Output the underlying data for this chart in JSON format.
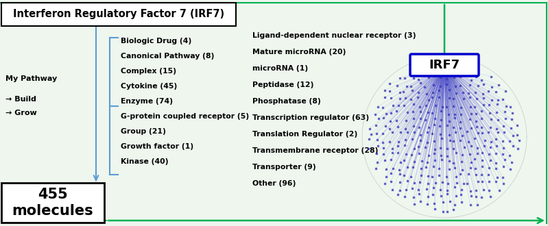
{
  "title": "Interferon Regulatory Factor 7 (IRF7)",
  "left_labels": [
    "My Pathway",
    "→ Build",
    "→ Grow"
  ],
  "col1_items": [
    "Biologic Drug (4)",
    "Canonical Pathway (8)",
    "Complex (15)",
    "Cytokine (45)",
    "Enzyme (74)",
    "G-protein coupled receptor (5)",
    "Group (21)",
    "Growth factor (1)",
    "Kinase (40)"
  ],
  "col2_items": [
    "Ligand-dependent nuclear receptor (3)",
    "Mature microRNA (20)",
    "microRNA (1)",
    "Peptidase (12)",
    "Phosphatase (8)",
    "Transcription regulator (63)",
    "Translation Regulator (2)",
    "Transmembrane receptor (28)",
    "Transporter (9)",
    "Other (96)"
  ],
  "molecules_text": "455\nmolecules",
  "irf7_label": "IRF7",
  "bg_color": "#eef6ee",
  "title_box_color": "#ffffff",
  "title_border_color": "#000000",
  "arrow_color_blue": "#5b9bd5",
  "arrow_color_green": "#00b050",
  "molecules_box_color": "#ffffff",
  "molecules_border_color": "#000000",
  "irf7_box_color": "#ffffff",
  "irf7_border_color": "#0000cc",
  "network_line_color": "#4444cc",
  "network_node_color": "#3333aa"
}
